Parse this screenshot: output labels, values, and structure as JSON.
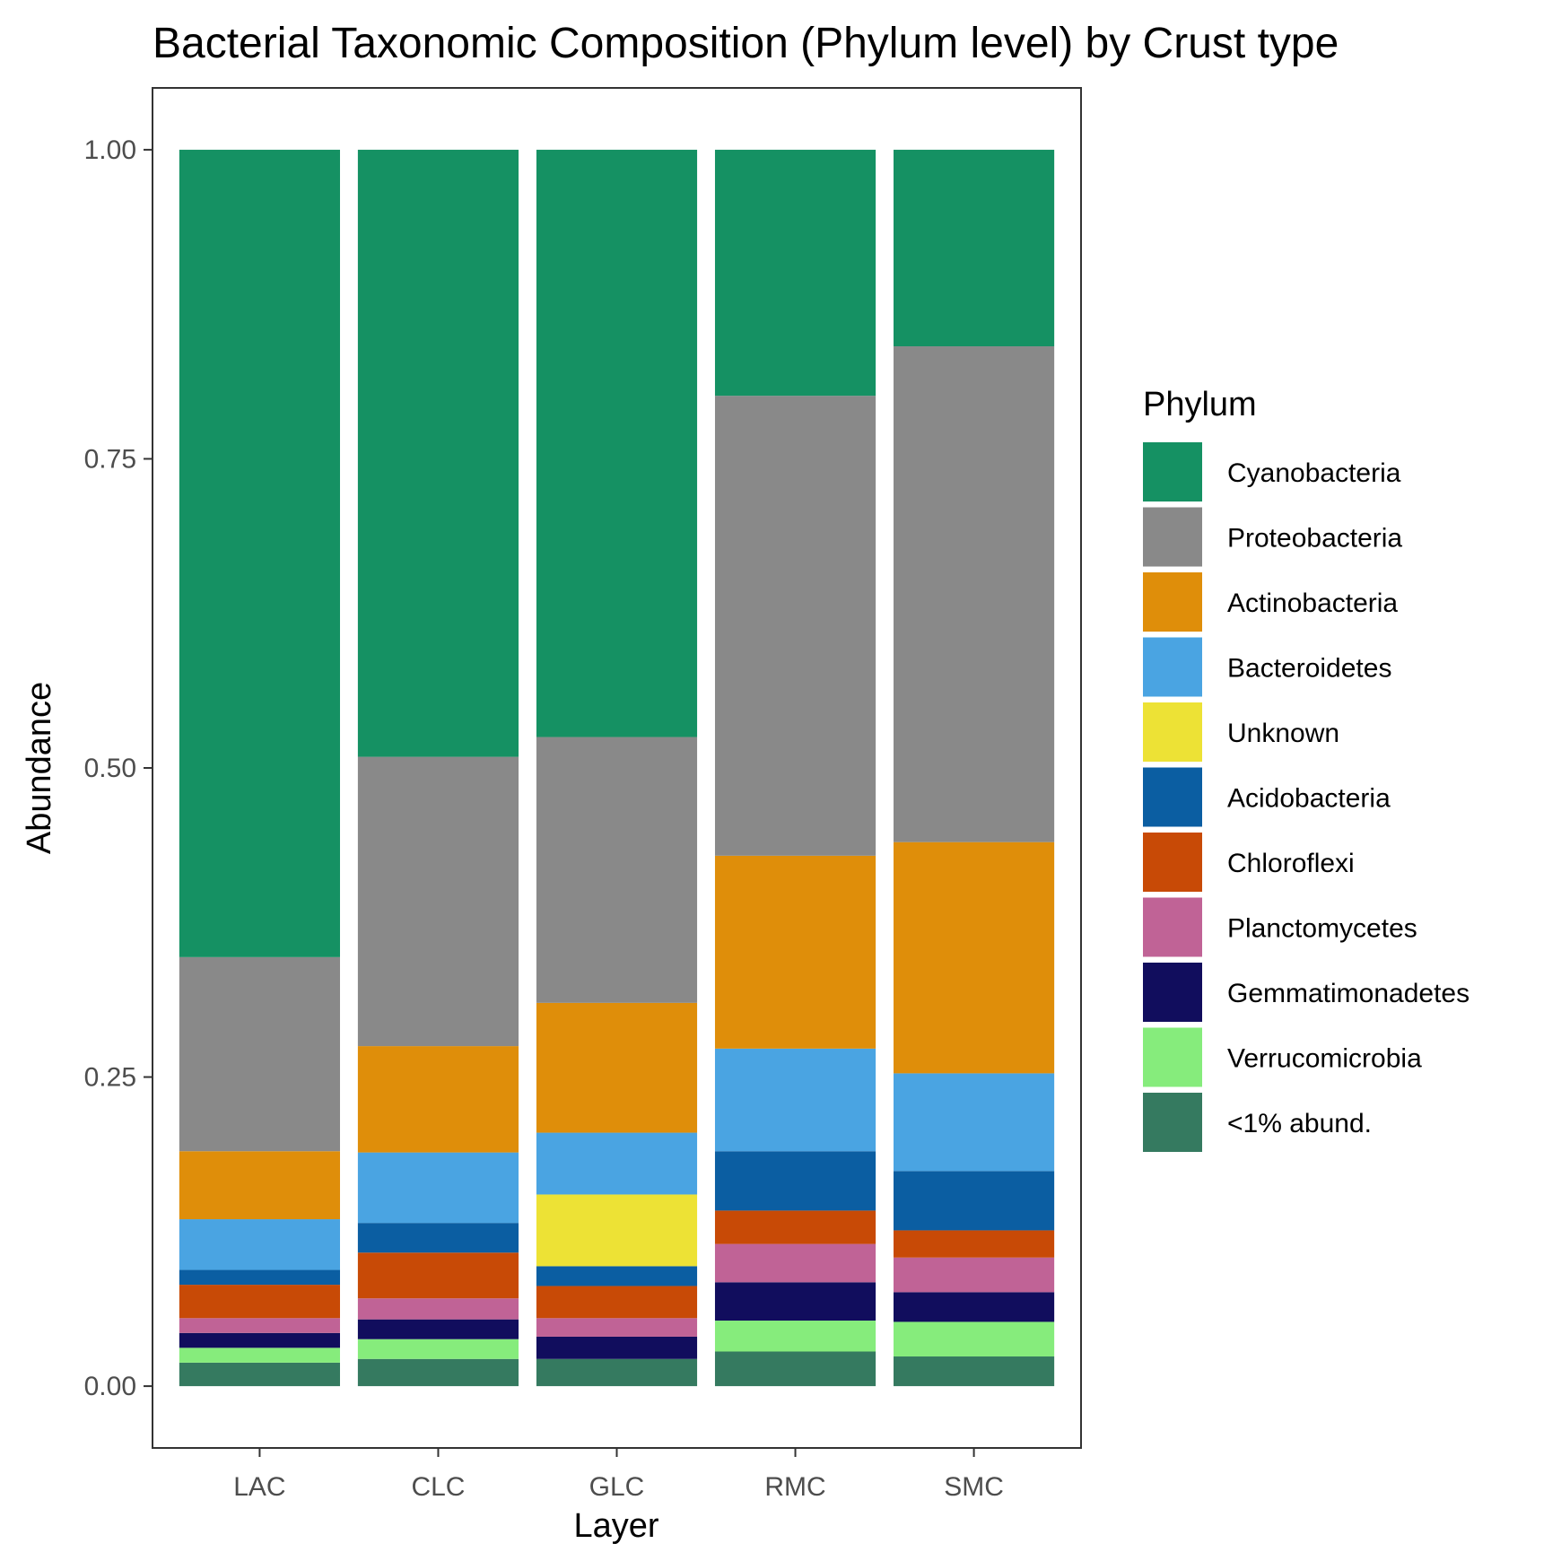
{
  "chart_data": {
    "type": "bar",
    "stacked": true,
    "title": "Bacterial Taxonomic Composition (Phylum level) by Crust type",
    "xlabel": "Layer",
    "ylabel": "Abundance",
    "ylim": [
      -0.05,
      1.05
    ],
    "yticks": [
      "0.00",
      "0.25",
      "0.50",
      "0.75",
      "1.00"
    ],
    "grid": false,
    "legend_position": "right",
    "legend_title": "Phylum",
    "categories": [
      "LAC",
      "CLC",
      "GLC",
      "RMC",
      "SMC"
    ],
    "series": [
      {
        "name": "<1% abund.",
        "color": "#357a60",
        "values": [
          0.019,
          0.022,
          0.022,
          0.028,
          0.024
        ]
      },
      {
        "name": "Verrucomicrobia",
        "color": "#86ec7c",
        "values": [
          0.012,
          0.016,
          0.0,
          0.025,
          0.028
        ]
      },
      {
        "name": "Gemmatimonadetes",
        "color": "#110d5d",
        "values": [
          0.012,
          0.016,
          0.018,
          0.031,
          0.024
        ]
      },
      {
        "name": "Planctomycetes",
        "color": "#c06396",
        "values": [
          0.012,
          0.017,
          0.015,
          0.031,
          0.028
        ]
      },
      {
        "name": "Chloroflexi",
        "color": "#c84a06",
        "values": [
          0.027,
          0.037,
          0.026,
          0.027,
          0.022
        ]
      },
      {
        "name": "Acidobacteria",
        "color": "#0b5ea2",
        "values": [
          0.012,
          0.024,
          0.016,
          0.048,
          0.048
        ]
      },
      {
        "name": "Unknown",
        "color": "#ede235",
        "values": [
          0.0,
          0.0,
          0.058,
          0.0,
          0.0
        ]
      },
      {
        "name": "Bacteroidetes",
        "color": "#4aa4e2",
        "values": [
          0.041,
          0.057,
          0.05,
          0.083,
          0.079
        ]
      },
      {
        "name": "Actinobacteria",
        "color": "#df8e0a",
        "values": [
          0.055,
          0.086,
          0.105,
          0.156,
          0.187
        ]
      },
      {
        "name": "Proteobacteria",
        "color": "#898989",
        "values": [
          0.157,
          0.234,
          0.215,
          0.372,
          0.401
        ]
      },
      {
        "name": "Cyanobacteria",
        "color": "#159163",
        "values": [
          0.653,
          0.491,
          0.475,
          0.199,
          0.159
        ]
      }
    ]
  }
}
